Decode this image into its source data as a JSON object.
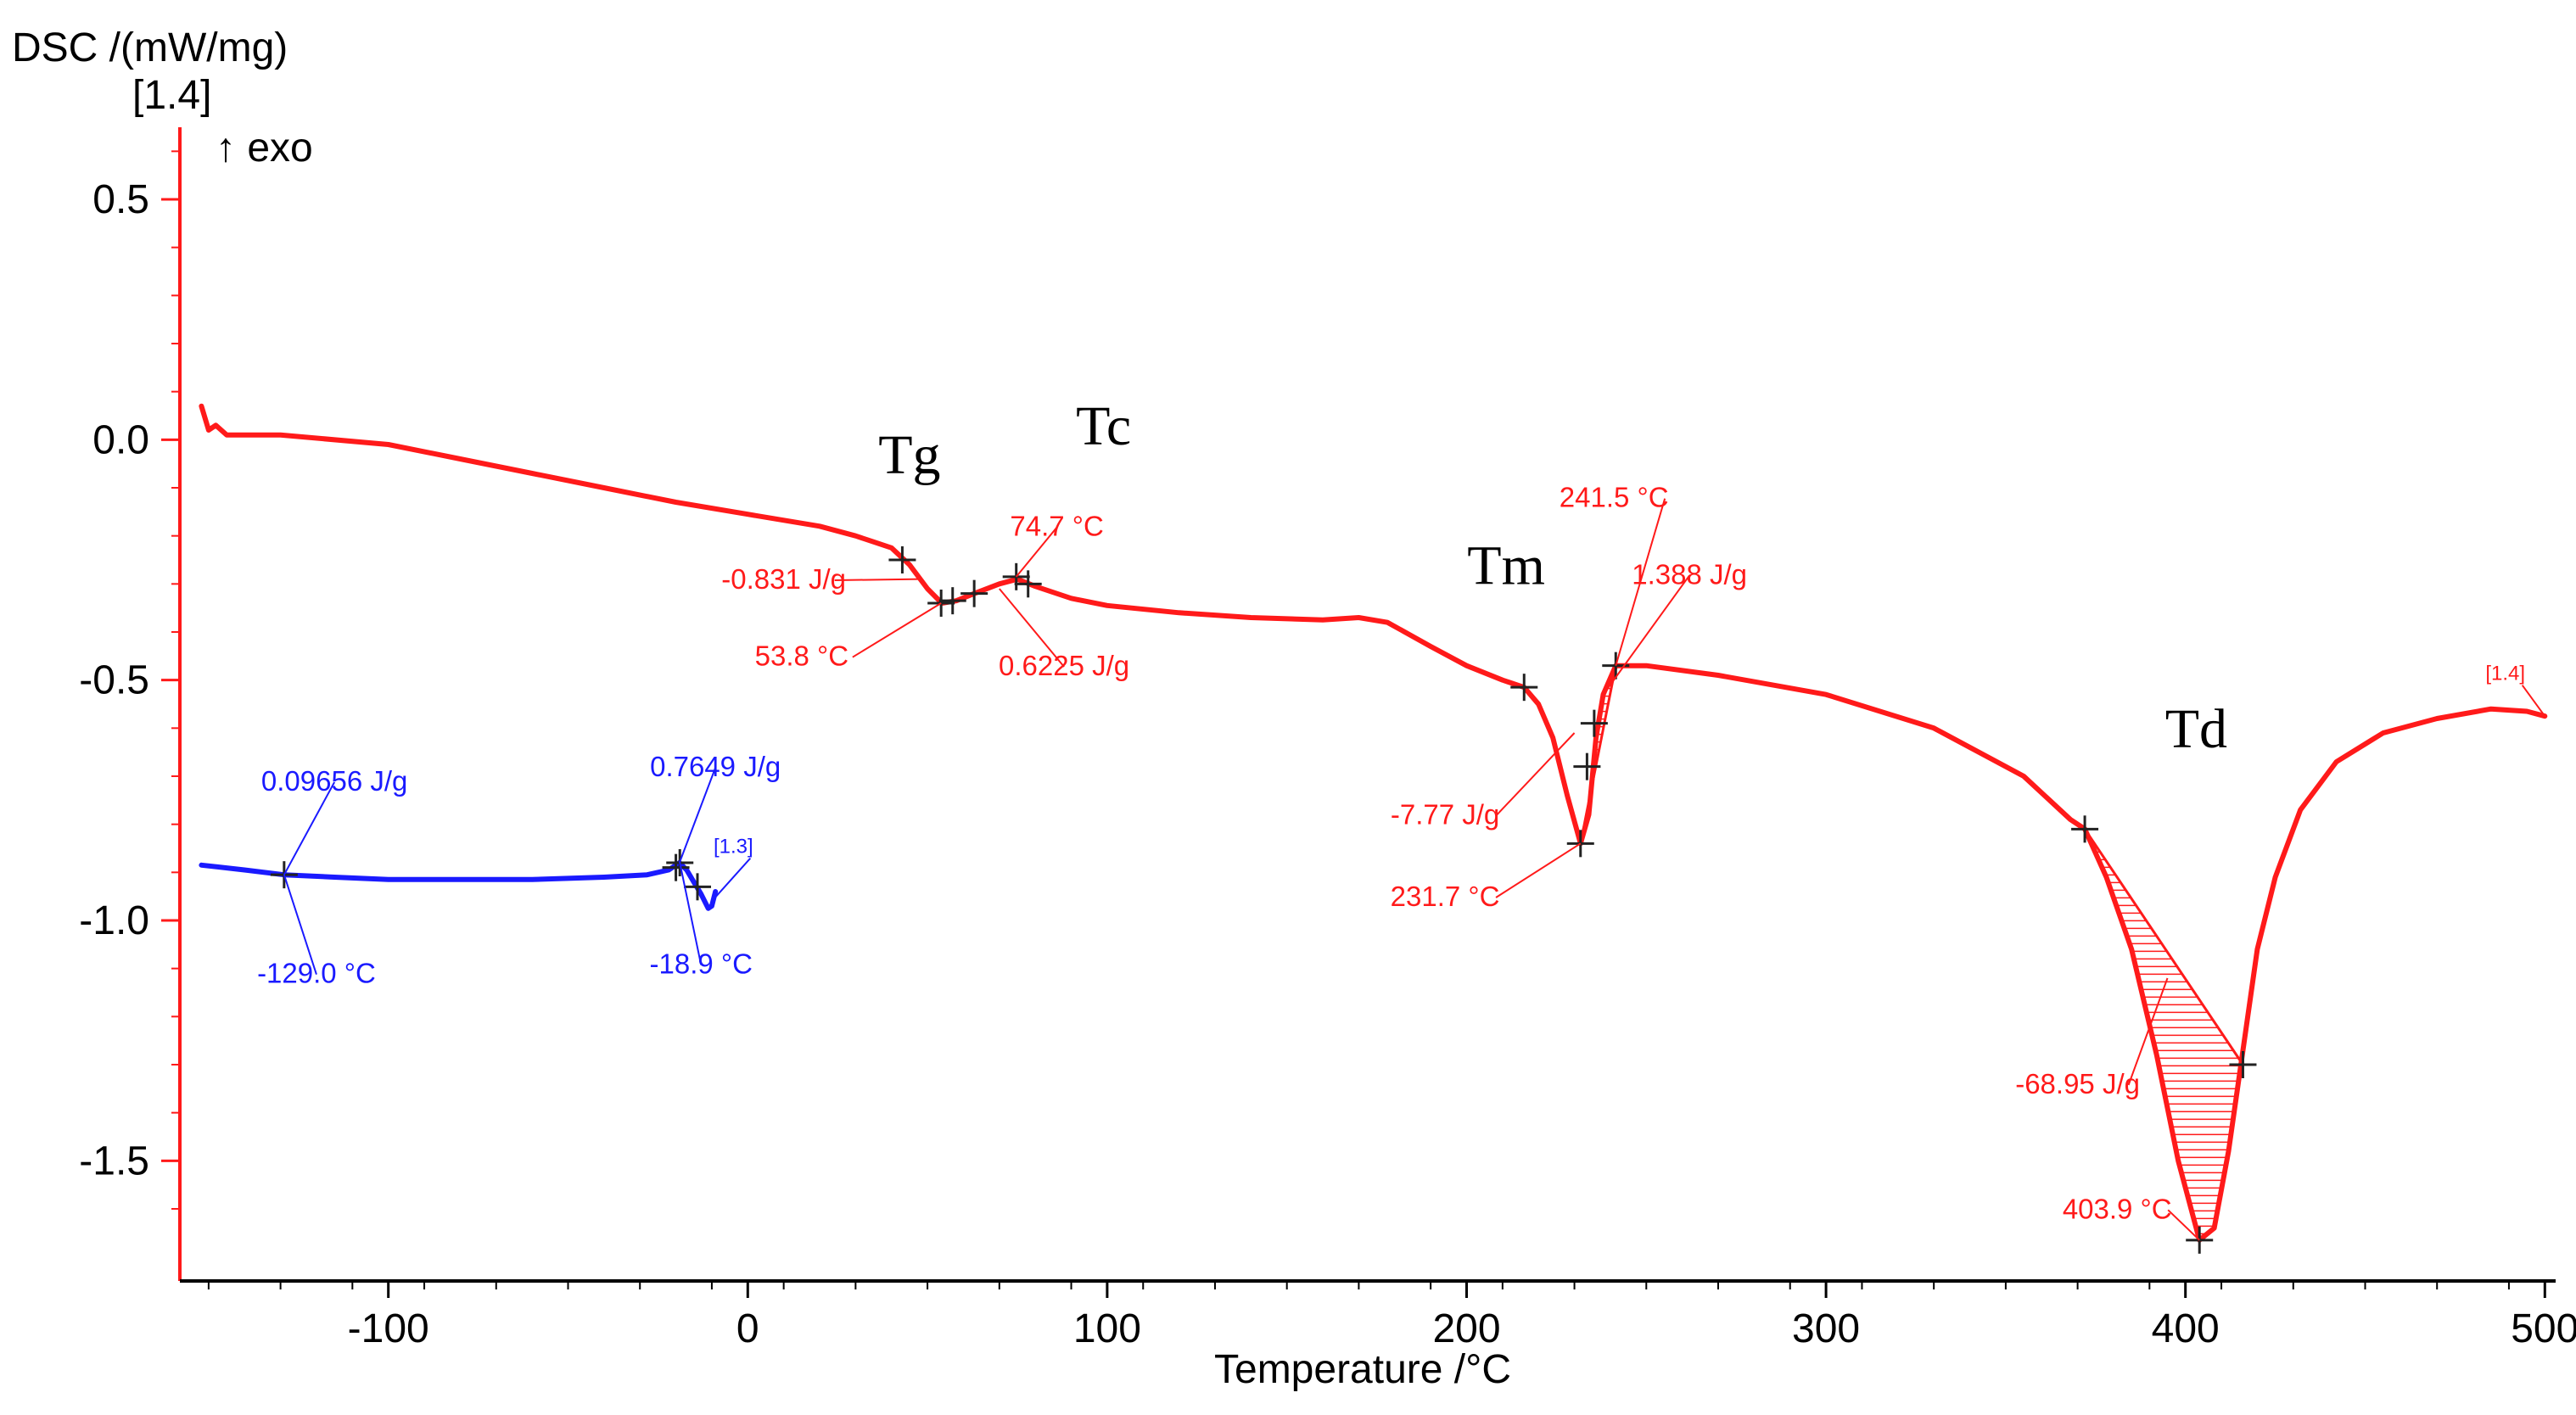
{
  "chart_data": {
    "type": "line",
    "ylabel": "DSC /(mW/mg)",
    "curve_tag": "[1.4]",
    "exo_label": "↑ exo",
    "xlabel": "Temperature /°C",
    "xlim": [
      -158,
      503
    ],
    "ylim": [
      -1.75,
      0.65
    ],
    "x_ticks": [
      -100,
      0,
      100,
      200,
      300,
      400,
      500
    ],
    "y_ticks": [
      0.5,
      0.0,
      -0.5,
      -1.0,
      -1.5
    ],
    "x_tick_labels": [
      "-100",
      "0",
      "100",
      "200",
      "300",
      "400",
      "500"
    ],
    "y_tick_labels": [
      "0.5",
      "0.0",
      "-0.5",
      "-1.0",
      "-1.5"
    ],
    "colors": {
      "red": "#ff1a1a",
      "blue": "#1a1aff",
      "axis": "#ff1a1a",
      "text": "#000000"
    },
    "series": [
      {
        "name": "[1.4]",
        "color": "#ff1a1a",
        "points": [
          [
            -152,
            0.07
          ],
          [
            -150,
            0.02
          ],
          [
            -148,
            0.03
          ],
          [
            -145,
            0.01
          ],
          [
            -140,
            0.01
          ],
          [
            -130,
            0.01
          ],
          [
            -100,
            -0.01
          ],
          [
            -80,
            -0.04
          ],
          [
            -60,
            -0.07
          ],
          [
            -40,
            -0.1
          ],
          [
            -20,
            -0.13
          ],
          [
            0,
            -0.155
          ],
          [
            20,
            -0.18
          ],
          [
            30,
            -0.2
          ],
          [
            40,
            -0.225
          ],
          [
            45,
            -0.26
          ],
          [
            50,
            -0.31
          ],
          [
            54,
            -0.34
          ],
          [
            58,
            -0.335
          ],
          [
            63,
            -0.32
          ],
          [
            70,
            -0.3
          ],
          [
            75,
            -0.29
          ],
          [
            80,
            -0.305
          ],
          [
            90,
            -0.33
          ],
          [
            100,
            -0.345
          ],
          [
            120,
            -0.36
          ],
          [
            140,
            -0.37
          ],
          [
            160,
            -0.375
          ],
          [
            170,
            -0.37
          ],
          [
            178,
            -0.38
          ],
          [
            190,
            -0.43
          ],
          [
            200,
            -0.47
          ],
          [
            210,
            -0.5
          ],
          [
            216,
            -0.515
          ],
          [
            220,
            -0.55
          ],
          [
            224,
            -0.62
          ],
          [
            228,
            -0.74
          ],
          [
            231.7,
            -0.84
          ],
          [
            234,
            -0.78
          ],
          [
            236,
            -0.62
          ],
          [
            238,
            -0.53
          ],
          [
            241.5,
            -0.47
          ],
          [
            250,
            -0.47
          ],
          [
            270,
            -0.49
          ],
          [
            300,
            -0.53
          ],
          [
            330,
            -0.6
          ],
          [
            355,
            -0.7
          ],
          [
            368,
            -0.79
          ],
          [
            372,
            -0.81
          ],
          [
            378,
            -0.91
          ],
          [
            385,
            -1.06
          ],
          [
            392,
            -1.28
          ],
          [
            398,
            -1.5
          ],
          [
            403.9,
            -1.665
          ],
          [
            408,
            -1.64
          ],
          [
            412,
            -1.48
          ],
          [
            416,
            -1.27
          ],
          [
            420,
            -1.06
          ],
          [
            425,
            -0.91
          ],
          [
            432,
            -0.77
          ],
          [
            442,
            -0.67
          ],
          [
            455,
            -0.61
          ],
          [
            470,
            -0.58
          ],
          [
            485,
            -0.56
          ],
          [
            495,
            -0.565
          ],
          [
            500,
            -0.575
          ]
        ]
      },
      {
        "name": "[1.3]",
        "color": "#1a1aff",
        "points": [
          [
            -152,
            -0.885
          ],
          [
            -140,
            -0.895
          ],
          [
            -129,
            -0.905
          ],
          [
            -115,
            -0.91
          ],
          [
            -100,
            -0.915
          ],
          [
            -80,
            -0.915
          ],
          [
            -60,
            -0.915
          ],
          [
            -40,
            -0.91
          ],
          [
            -28,
            -0.905
          ],
          [
            -22,
            -0.895
          ],
          [
            -19,
            -0.88
          ],
          [
            -17,
            -0.895
          ],
          [
            -15,
            -0.92
          ],
          [
            -13,
            -0.945
          ],
          [
            -11,
            -0.975
          ],
          [
            -10,
            -0.97
          ],
          [
            -9,
            -0.94
          ]
        ]
      }
    ],
    "markers": [
      {
        "series": "red",
        "x": 43,
        "y": -0.25
      },
      {
        "series": "red",
        "x": 53.8,
        "y": -0.34
      },
      {
        "series": "red",
        "x": 57,
        "y": -0.335
      },
      {
        "series": "red",
        "x": 63,
        "y": -0.32
      },
      {
        "series": "red",
        "x": 74.7,
        "y": -0.285
      },
      {
        "series": "red",
        "x": 78,
        "y": -0.3
      },
      {
        "series": "red",
        "x": 216,
        "y": -0.515
      },
      {
        "series": "red",
        "x": 231.7,
        "y": -0.84
      },
      {
        "series": "red",
        "x": 233.5,
        "y": -0.68
      },
      {
        "series": "red",
        "x": 235.5,
        "y": -0.59
      },
      {
        "series": "red",
        "x": 241.5,
        "y": -0.47
      },
      {
        "series": "red",
        "x": 372,
        "y": -0.81
      },
      {
        "series": "red",
        "x": 403.9,
        "y": -1.665
      },
      {
        "series": "red",
        "x": 416,
        "y": -1.3
      },
      {
        "series": "blue",
        "x": -129,
        "y": -0.905
      },
      {
        "series": "blue",
        "x": -20,
        "y": -0.89
      },
      {
        "series": "blue",
        "x": -18.9,
        "y": -0.88
      },
      {
        "series": "blue",
        "x": -14,
        "y": -0.93
      }
    ],
    "annotations": [
      {
        "text": "-0.831 J/g",
        "color": "#ff1a1a",
        "tx": 10,
        "ty": -0.31,
        "px": 48,
        "py": -0.29
      },
      {
        "text": "53.8 °C",
        "color": "#ff1a1a",
        "tx": 15,
        "ty": -0.47,
        "px": 53.8,
        "py": -0.34
      },
      {
        "text": "74.7 °C",
        "color": "#ff1a1a",
        "tx": 86,
        "ty": -0.2,
        "px": 74.7,
        "py": -0.285
      },
      {
        "text": "0.6225 J/g",
        "color": "#ff1a1a",
        "tx": 88,
        "ty": -0.49,
        "px": 70,
        "py": -0.31
      },
      {
        "text": "241.5 °C",
        "color": "#ff1a1a",
        "tx": 241,
        "ty": -0.14,
        "px": 241.5,
        "py": -0.47
      },
      {
        "text": "1.388 J/g",
        "color": "#ff1a1a",
        "tx": 262,
        "ty": -0.3,
        "px": 239,
        "py": -0.52
      },
      {
        "text": "-7.77 J/g",
        "color": "#ff1a1a",
        "tx": 194,
        "ty": -0.8,
        "px": 230,
        "py": -0.61
      },
      {
        "text": "231.7 °C",
        "color": "#ff1a1a",
        "tx": 194,
        "ty": -0.97,
        "px": 231.7,
        "py": -0.84
      },
      {
        "text": "-68.95 J/g",
        "color": "#ff1a1a",
        "tx": 370,
        "ty": -1.36,
        "px": 395,
        "py": -1.12
      },
      {
        "text": "403.9 °C",
        "color": "#ff1a1a",
        "tx": 381,
        "ty": -1.62,
        "px": 403.9,
        "py": -1.665
      },
      {
        "text": "0.09656 J/g",
        "color": "#1a1aff",
        "tx": -115,
        "ty": -0.73,
        "px": -129,
        "py": -0.905
      },
      {
        "text": "-129.0 °C",
        "color": "#1a1aff",
        "tx": -120,
        "ty": -1.13,
        "px": -129,
        "py": -0.905
      },
      {
        "text": "0.7649 J/g",
        "color": "#1a1aff",
        "tx": -9,
        "ty": -0.7,
        "px": -19,
        "py": -0.88
      },
      {
        "text": "-18.9 °C",
        "color": "#1a1aff",
        "tx": -13,
        "ty": -1.11,
        "px": -18.9,
        "py": -0.88
      }
    ],
    "tags": [
      {
        "text": "[1.3]",
        "color": "#1a1aff",
        "tx": -4,
        "ty": -0.86,
        "px": -10,
        "py": -0.96
      },
      {
        "text": "[1.4]",
        "color": "#ff1a1a",
        "tx": 489,
        "ty": -0.5,
        "px": 500,
        "py": -0.575
      }
    ],
    "transitions": [
      {
        "label": "Tg",
        "x": 45,
        "y": -0.07
      },
      {
        "label": "Tc",
        "x": 99,
        "y": -0.01
      },
      {
        "label": "Tm",
        "x": 211,
        "y": -0.3
      },
      {
        "label": "Td",
        "x": 403,
        "y": -0.64
      }
    ],
    "hatched_regions": [
      {
        "from": [
          231.7,
          -0.84
        ],
        "to": [
          241.5,
          -0.47
        ]
      },
      {
        "from": [
          372,
          -0.81
        ],
        "to": [
          416,
          -1.3
        ]
      }
    ]
  }
}
